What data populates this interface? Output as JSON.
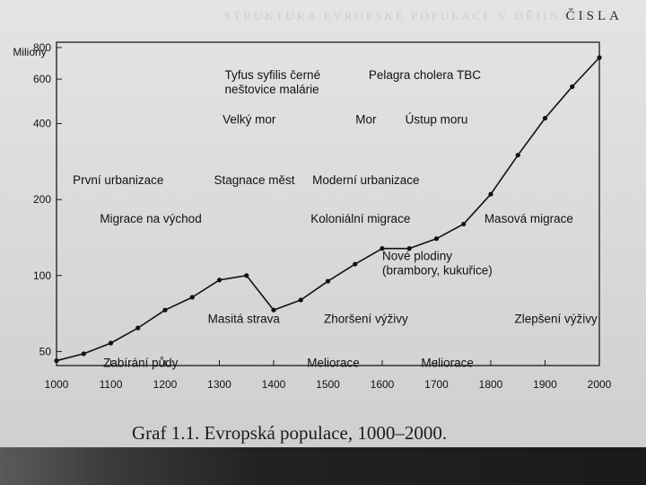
{
  "page": {
    "running_head": "ČISLA",
    "ghost_text": "STRUKTURA EVROPSKÉ POPULACE V DĚJINÁCH",
    "caption": "Graf 1.1. Evropská populace, 1000–2000."
  },
  "chart_data": {
    "type": "line",
    "title": "",
    "xlabel": "",
    "ylabel": "Miliony",
    "xlim": [
      1000,
      2000
    ],
    "ylim": [
      44,
      840
    ],
    "yscale": "log",
    "grid": false,
    "legend": "none",
    "x_ticks": [
      "1000",
      "1100",
      "1200",
      "1300",
      "1400",
      "1500",
      "1600",
      "1700",
      "1800",
      "1900",
      "2000"
    ],
    "y_ticks": [
      {
        "value": 50,
        "label": "50"
      },
      {
        "value": 100,
        "label": "100"
      },
      {
        "value": 200,
        "label": "200"
      },
      {
        "value": 400,
        "label": "400"
      },
      {
        "value": 600,
        "label": "600"
      },
      {
        "value": 800,
        "label": "800"
      }
    ],
    "series": [
      {
        "name": "",
        "x": [
          1000,
          1050,
          1100,
          1150,
          1200,
          1250,
          1300,
          1350,
          1400,
          1450,
          1500,
          1550,
          1600,
          1650,
          1700,
          1750,
          1800,
          1850,
          1900,
          1950,
          2000
        ],
        "y": [
          46,
          49,
          54,
          62,
          73,
          82,
          96,
          100,
          73,
          80,
          95,
          111,
          128,
          128,
          140,
          160,
          210,
          300,
          420,
          560,
          730
        ]
      }
    ],
    "annotations": [
      {
        "lines": [
          "Tyfus syfilis černé",
          "neštovice malárie"
        ],
        "x": 1310,
        "y": 600,
        "anchor": "start"
      },
      {
        "lines": [
          "Pelagra cholera TBC"
        ],
        "x": 1575,
        "y": 600,
        "anchor": "start"
      },
      {
        "lines": [
          "Velký mor"
        ],
        "x": 1355,
        "y": 400,
        "anchor": "middle"
      },
      {
        "lines": [
          "Mor"
        ],
        "x": 1570,
        "y": 400,
        "anchor": "middle"
      },
      {
        "lines": [
          "Ústup moru"
        ],
        "x": 1700,
        "y": 400,
        "anchor": "middle"
      },
      {
        "lines": [
          "První urbanizace"
        ],
        "x": 1030,
        "y": 230,
        "anchor": "start"
      },
      {
        "lines": [
          "Stagnace měst"
        ],
        "x": 1290,
        "y": 230,
        "anchor": "start"
      },
      {
        "lines": [
          "Moderní urbanizace"
        ],
        "x": 1570,
        "y": 230,
        "anchor": "middle"
      },
      {
        "lines": [
          "Migrace na východ"
        ],
        "x": 1080,
        "y": 162,
        "anchor": "start"
      },
      {
        "lines": [
          "Koloniální migrace"
        ],
        "x": 1560,
        "y": 162,
        "anchor": "middle"
      },
      {
        "lines": [
          "Masová migrace"
        ],
        "x": 1870,
        "y": 162,
        "anchor": "middle"
      },
      {
        "lines": [
          "Nové plodiny",
          "(brambory, kukuřice)"
        ],
        "x": 1600,
        "y": 115,
        "anchor": "start"
      },
      {
        "lines": [
          "Masitá strava"
        ],
        "x": 1345,
        "y": 65,
        "anchor": "middle"
      },
      {
        "lines": [
          "Zhoršení výživy"
        ],
        "x": 1570,
        "y": 65,
        "anchor": "middle"
      },
      {
        "lines": [
          "Zlepšení výživy"
        ],
        "x": 1920,
        "y": 65,
        "anchor": "middle"
      },
      {
        "lines": [
          "Zabírání půdy"
        ],
        "x": 1155,
        "y": 43.5,
        "anchor": "middle"
      },
      {
        "lines": [
          "Meliorace"
        ],
        "x": 1510,
        "y": 43.5,
        "anchor": "middle"
      },
      {
        "lines": [
          "Meliorace"
        ],
        "x": 1720,
        "y": 43.5,
        "anchor": "middle"
      }
    ]
  }
}
